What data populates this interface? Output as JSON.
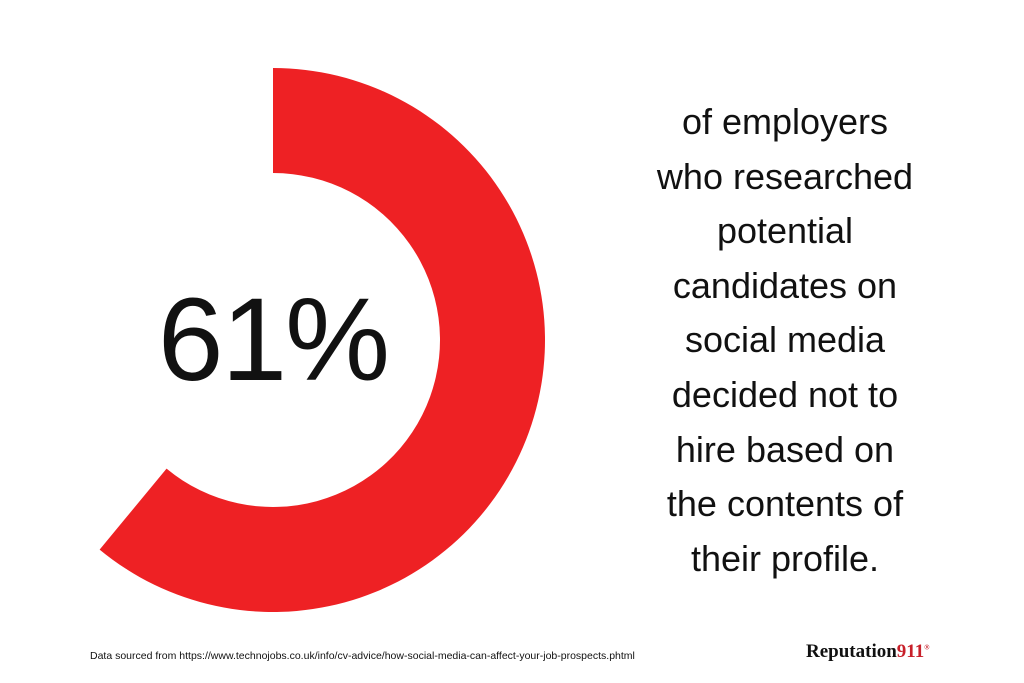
{
  "chart_data": {
    "type": "pie",
    "variant": "donut",
    "values": [
      61
    ],
    "unit": "%",
    "range": [
      0,
      100
    ],
    "colors": {
      "segment": "#ee2124",
      "background": "#ffffff"
    },
    "label": "61%"
  },
  "description_lines": [
    "of employers",
    "who researched",
    "potential",
    "candidates on",
    "social media",
    "decided not to",
    "hire based on",
    "the contents of",
    "their profile."
  ],
  "footer": {
    "source": "Data sourced from https://www.technojobs.co.uk/info/cv-advice/how-social-media-can-affect-your-job-prospects.phtml",
    "logo_text": "Reputation",
    "logo_number": "911",
    "logo_mark": "®"
  }
}
